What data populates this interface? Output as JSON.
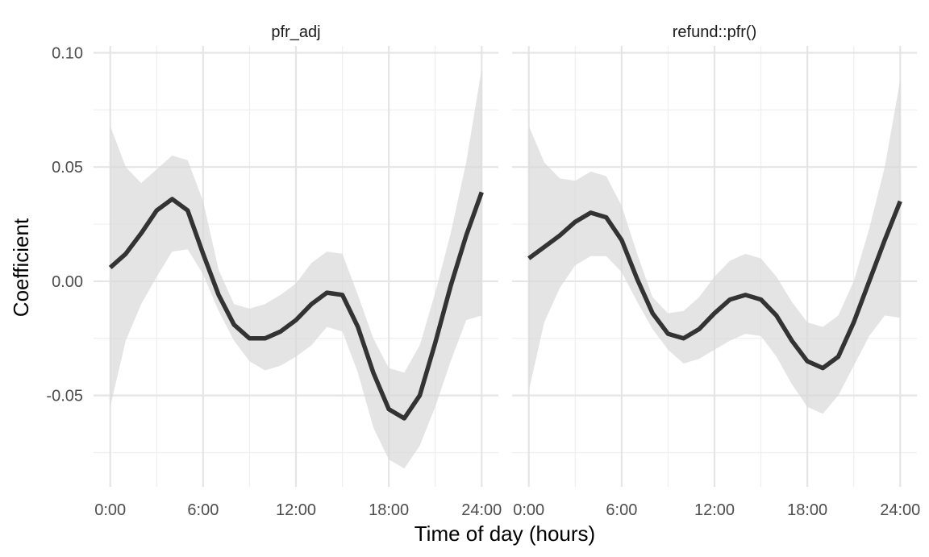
{
  "chart_data": {
    "type": "line",
    "xlabel": "Time of day (hours)",
    "ylabel": "Coefficient",
    "xlim": [
      0,
      24
    ],
    "ylim": [
      -0.09,
      0.103
    ],
    "x_ticks": [
      0,
      6,
      12,
      18,
      24
    ],
    "x_tick_labels": [
      "0:00",
      "6:00",
      "12:00",
      "18:00",
      "24:00"
    ],
    "y_ticks": [
      -0.05,
      0,
      0.05,
      0.1
    ],
    "y_tick_labels": [
      "-0.05",
      "0.00",
      "0.05",
      "0.10"
    ],
    "grid": true,
    "legend": "none",
    "x": [
      0,
      1,
      2,
      3,
      4,
      5,
      6,
      7,
      8,
      9,
      10,
      11,
      12,
      13,
      14,
      15,
      16,
      17,
      18,
      19,
      20,
      21,
      22,
      23,
      24
    ],
    "panels": [
      {
        "title": "pfr_adj",
        "estimate": [
          0.006,
          0.012,
          0.021,
          0.031,
          0.036,
          0.031,
          0.012,
          -0.006,
          -0.019,
          -0.025,
          -0.025,
          -0.022,
          -0.017,
          -0.01,
          -0.005,
          -0.006,
          -0.02,
          -0.04,
          -0.056,
          -0.06,
          -0.05,
          -0.027,
          -0.002,
          0.02,
          0.039
        ],
        "lower": [
          -0.055,
          -0.026,
          -0.01,
          0.002,
          0.013,
          0.014,
          0.003,
          -0.013,
          -0.026,
          -0.035,
          -0.039,
          -0.037,
          -0.033,
          -0.028,
          -0.02,
          -0.022,
          -0.04,
          -0.064,
          -0.078,
          -0.082,
          -0.072,
          -0.055,
          -0.035,
          -0.017,
          -0.015
        ],
        "upper": [
          0.068,
          0.05,
          0.043,
          0.049,
          0.055,
          0.053,
          0.035,
          0.005,
          -0.01,
          -0.012,
          -0.01,
          -0.006,
          -0.001,
          0.008,
          0.013,
          0.012,
          -0.006,
          -0.025,
          -0.038,
          -0.04,
          -0.028,
          -0.005,
          0.021,
          0.052,
          0.093
        ]
      },
      {
        "title": "refund::pfr()",
        "estimate": [
          0.01,
          0.015,
          0.02,
          0.026,
          0.03,
          0.028,
          0.018,
          0.001,
          -0.014,
          -0.023,
          -0.025,
          -0.021,
          -0.014,
          -0.008,
          -0.006,
          -0.008,
          -0.015,
          -0.026,
          -0.035,
          -0.038,
          -0.033,
          -0.018,
          0.0,
          0.018,
          0.035
        ],
        "lower": [
          -0.048,
          -0.018,
          -0.003,
          0.007,
          0.011,
          0.011,
          0.004,
          -0.009,
          -0.021,
          -0.03,
          -0.036,
          -0.034,
          -0.03,
          -0.026,
          -0.023,
          -0.024,
          -0.033,
          -0.045,
          -0.055,
          -0.058,
          -0.05,
          -0.037,
          -0.024,
          -0.015,
          -0.016
        ],
        "upper": [
          0.068,
          0.052,
          0.045,
          0.044,
          0.048,
          0.046,
          0.033,
          0.012,
          -0.007,
          -0.014,
          -0.013,
          -0.007,
          0.002,
          0.009,
          0.012,
          0.01,
          0.002,
          -0.009,
          -0.018,
          -0.02,
          -0.015,
          0.0,
          0.023,
          0.05,
          0.088
        ]
      }
    ]
  }
}
